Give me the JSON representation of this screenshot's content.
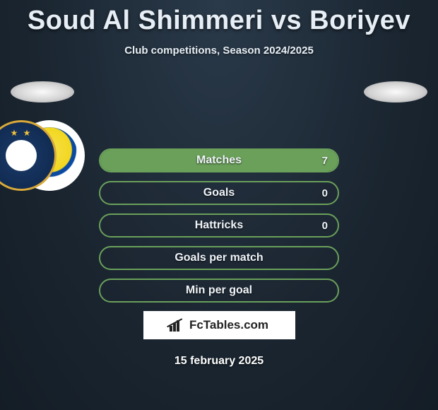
{
  "title": "Soud Al Shimmeri vs Boriyev",
  "subtitle": "Club competitions, Season 2024/2025",
  "date": "15 february 2025",
  "logo_text": "FcTables.com",
  "colors": {
    "row_border": "#6aa05a",
    "row_fill": "#6aa05a",
    "row_bg": "rgba(30,40,50,0.25)"
  },
  "stats": [
    {
      "label": "Matches",
      "value": "7",
      "fill_pct": 100,
      "show_value": true
    },
    {
      "label": "Goals",
      "value": "0",
      "fill_pct": 0,
      "show_value": true
    },
    {
      "label": "Hattricks",
      "value": "0",
      "fill_pct": 0,
      "show_value": true
    },
    {
      "label": "Goals per match",
      "value": "",
      "fill_pct": 0,
      "show_value": false
    },
    {
      "label": "Min per goal",
      "value": "",
      "fill_pct": 0,
      "show_value": false
    }
  ],
  "clubs": {
    "left_name": "al-gharafa-badge",
    "right_name": "pakhtakor-badge"
  }
}
